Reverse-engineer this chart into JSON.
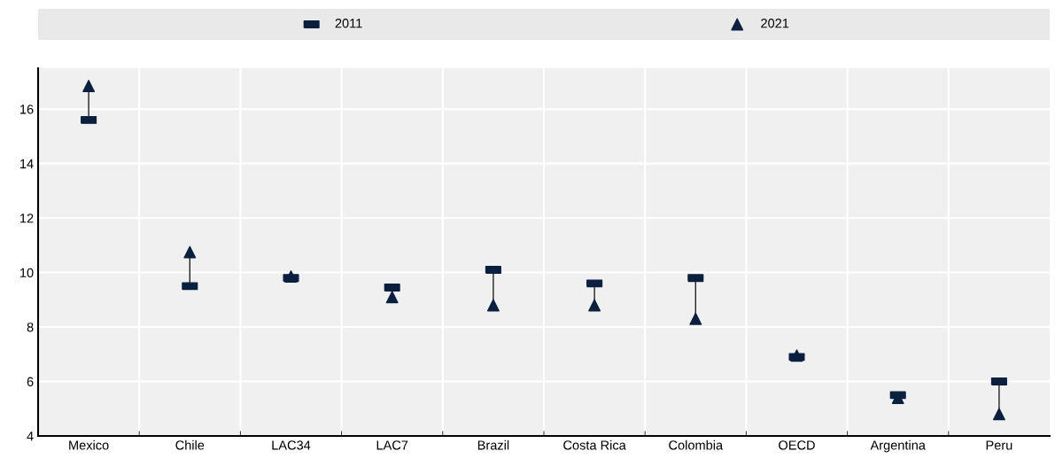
{
  "chart_data": {
    "type": "scatter",
    "categories": [
      "Mexico",
      "Chile",
      "LAC34",
      "LAC7",
      "Brazil",
      "Costa Rica",
      "Colombia",
      "OECD",
      "Argentina",
      "Peru"
    ],
    "series": [
      {
        "name": "2011",
        "color": "#0b1f3f",
        "values": [
          15.6,
          9.5,
          9.8,
          9.45,
          10.1,
          9.6,
          9.8,
          6.9,
          5.5,
          6.0
        ]
      },
      {
        "name": "2021",
        "color": "#0b1f3f",
        "marker": "triangle",
        "values": [
          16.85,
          10.75,
          9.85,
          9.1,
          8.8,
          8.8,
          8.3,
          6.95,
          5.4,
          4.8
        ]
      }
    ],
    "ylim": [
      4,
      17.5
    ],
    "yticks": [
      4,
      6,
      8,
      10,
      12,
      14,
      16
    ],
    "grid": true,
    "legend": "top"
  }
}
